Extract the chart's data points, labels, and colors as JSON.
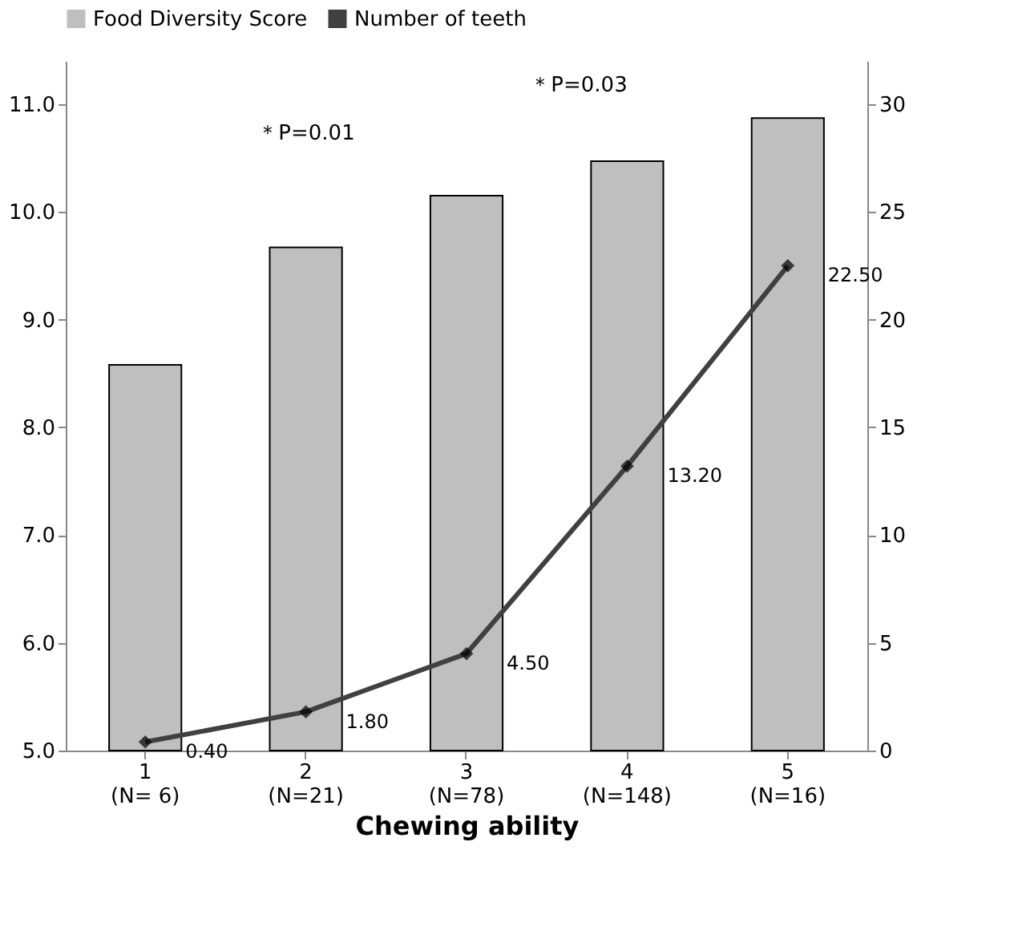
{
  "chart_data": {
    "type": "bar",
    "categories": [
      "1\n(N= 6)",
      "2\n(N=21)",
      "3\n(N=78)",
      "4\n(N=148)",
      "5\n(N=16)"
    ],
    "xlabel": "Chewing ability",
    "series": [
      {
        "name": "Food Diversity Score",
        "color": "#bfbfbf",
        "values": [
          8.58,
          9.67,
          10.15,
          10.47,
          10.87
        ]
      },
      {
        "name": "Number of teeth",
        "type": "line",
        "axis": "y2",
        "color": "#404040",
        "marker": "diamond",
        "values": [
          0.4,
          1.8,
          4.5,
          13.2,
          22.5
        ],
        "value_labels": [
          "0.40",
          "1.80",
          "4.50",
          "13.20",
          "22.50"
        ]
      }
    ],
    "ylim": [
      5,
      11.4
    ],
    "yticks": [
      {
        "value": 5,
        "label": "5.0"
      },
      {
        "value": 6,
        "label": "6.0"
      },
      {
        "value": 7,
        "label": "7.0"
      },
      {
        "value": 8,
        "label": "8.0"
      },
      {
        "value": 9,
        "label": "9.0"
      },
      {
        "value": 10,
        "label": "10.0"
      },
      {
        "value": 11,
        "label": "11.0"
      }
    ],
    "y2lim": [
      0,
      32
    ],
    "y2ticks": [
      0,
      5,
      10,
      15,
      20,
      25,
      30
    ],
    "annotations": [
      "＊P=0.01",
      "＊P=0.03"
    ],
    "legend": "top",
    "grid": false
  }
}
